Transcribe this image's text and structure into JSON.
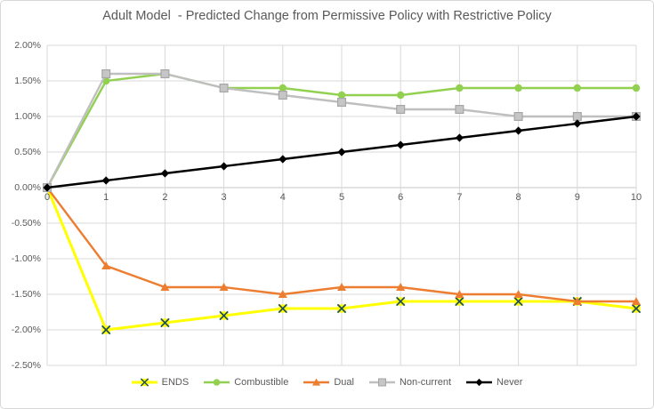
{
  "chart_data": {
    "type": "line",
    "title": "Adult Model  - Predicted Change from Permissive Policy with Restrictive Policy",
    "xlabel": "",
    "ylabel": "",
    "x": [
      0,
      1,
      2,
      3,
      4,
      5,
      6,
      7,
      8,
      9,
      10
    ],
    "x_ticks": [
      "0",
      "1",
      "2",
      "3",
      "4",
      "5",
      "6",
      "7",
      "8",
      "9",
      "10"
    ],
    "y_ticks": [
      "2.00%",
      "1.50%",
      "1.00%",
      "0.50%",
      "0.00%",
      "-0.50%",
      "-1.00%",
      "-1.50%",
      "-2.00%",
      "-2.50%"
    ],
    "ylim": [
      -2.5,
      2.0
    ],
    "y_step": 0.5,
    "grid": true,
    "legend_position": "bottom",
    "series": [
      {
        "name": "ENDS",
        "color": "#FFFF00",
        "marker": "x",
        "marker_accent": "#1F4E5F",
        "values": [
          0.0,
          -2.0,
          -1.9,
          -1.8,
          -1.7,
          -1.7,
          -1.6,
          -1.6,
          -1.6,
          -1.6,
          -1.7
        ]
      },
      {
        "name": "Combustible",
        "color": "#92D050",
        "marker": "circle",
        "values": [
          0.0,
          1.5,
          1.6,
          1.4,
          1.4,
          1.3,
          1.3,
          1.4,
          1.4,
          1.4,
          1.4
        ]
      },
      {
        "name": "Dual",
        "color": "#ED7D31",
        "marker": "triangle",
        "values": [
          0.0,
          -1.1,
          -1.4,
          -1.4,
          -1.5,
          -1.4,
          -1.4,
          -1.5,
          -1.5,
          -1.6,
          -1.6
        ]
      },
      {
        "name": "Non-current",
        "color": "#BFBFBF",
        "marker": "square",
        "marker_fill": "#C6C6C6",
        "marker_stroke": "#A6A6A6",
        "values": [
          0.0,
          1.6,
          1.6,
          1.4,
          1.3,
          1.2,
          1.1,
          1.1,
          1.0,
          1.0,
          1.0
        ]
      },
      {
        "name": "Never",
        "color": "#000000",
        "marker": "diamond",
        "values": [
          0.0,
          0.1,
          0.2,
          0.3,
          0.4,
          0.5,
          0.6,
          0.7,
          0.8,
          0.9,
          1.0
        ]
      }
    ],
    "style": {
      "grid_color": "#D9D9D9",
      "axis_line_color": "#C6C6C6",
      "axis_text_color": "#595959",
      "title_color": "#595959",
      "background": "#FFFFFF"
    }
  }
}
